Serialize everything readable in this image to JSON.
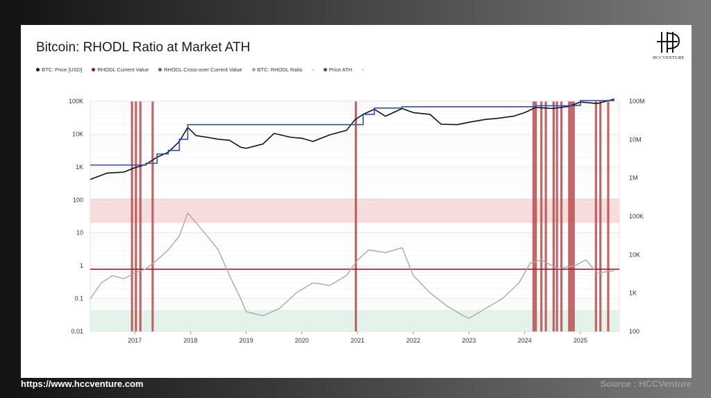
{
  "chart_data": {
    "type": "line",
    "title": "Bitcoin: RHODL Ratio at Market ATH",
    "legend": [
      {
        "label": "BTC: Price [USD]",
        "color": "#111111"
      },
      {
        "label": "RHODL Current Value",
        "color": "#8b1a1a"
      },
      {
        "label": "RHODL Cross-over Current Value",
        "color": "#a04848"
      },
      {
        "label": "BTC: RHODL Ratio",
        "color": "#a8a8a8"
      },
      {
        "label": "-",
        "color": ""
      },
      {
        "label": "Price ATH",
        "color": "#2f4bb5"
      },
      {
        "label": "-",
        "color": ""
      }
    ],
    "x_ticks": [
      "2017",
      "2018",
      "2019",
      "2020",
      "2021",
      "2022",
      "2023",
      "2024",
      "2025"
    ],
    "x_range": [
      2016.2,
      2025.7
    ],
    "y_left_ticks": [
      "0.01",
      "0.1",
      "1",
      "10",
      "100",
      "1K",
      "10K",
      "100K"
    ],
    "y_left_range": [
      0.01,
      100000
    ],
    "y_left_scale": "log",
    "y_right_ticks": [
      "100",
      "1K",
      "10K",
      "100K",
      "1M",
      "10M",
      "100M"
    ],
    "y_right_range": [
      100,
      100000000
    ],
    "y_right_scale": "log",
    "rhodl_current_value": 0.78,
    "bands": [
      {
        "name": "upper",
        "from": 20,
        "to": 110,
        "color": "#f7d4d4"
      },
      {
        "name": "lower",
        "from": 0.01,
        "to": 0.045,
        "color": "#dff1e6"
      }
    ],
    "price_series": {
      "name": "BTC: Price [USD]",
      "x": [
        2016.2,
        2016.5,
        2016.8,
        2017.0,
        2017.2,
        2017.4,
        2017.6,
        2017.8,
        2017.95,
        2018.1,
        2018.3,
        2018.5,
        2018.7,
        2018.9,
        2019.0,
        2019.3,
        2019.5,
        2019.8,
        2020.0,
        2020.2,
        2020.5,
        2020.8,
        2020.95,
        2021.1,
        2021.3,
        2021.5,
        2021.8,
        2022.0,
        2022.3,
        2022.5,
        2022.8,
        2023.0,
        2023.3,
        2023.5,
        2023.8,
        2024.0,
        2024.2,
        2024.5,
        2024.8,
        2025.0,
        2025.3,
        2025.6
      ],
      "values": [
        420,
        650,
        700,
        950,
        1200,
        2000,
        2800,
        6000,
        16000,
        9000,
        8000,
        7000,
        6500,
        4000,
        3700,
        5000,
        10500,
        8000,
        7500,
        6000,
        9500,
        13000,
        27000,
        40000,
        57000,
        35000,
        60000,
        45000,
        40000,
        20000,
        19500,
        23000,
        28000,
        30000,
        35000,
        45000,
        65000,
        60000,
        70000,
        95000,
        85000,
        115000
      ]
    },
    "ath_series": {
      "name": "Price ATH",
      "x": [
        2016.2,
        2017.0,
        2017.2,
        2017.4,
        2017.6,
        2017.8,
        2017.95,
        2020.95,
        2021.1,
        2021.3,
        2021.8,
        2024.2,
        2024.9,
        2025.0,
        2025.6
      ],
      "values": [
        1150,
        1150,
        1300,
        2500,
        3200,
        7000,
        19500,
        19500,
        40000,
        62000,
        68000,
        73000,
        75000,
        105000,
        123000
      ]
    },
    "rhodl_series": {
      "name": "BTC: RHODL Ratio",
      "x": [
        2016.2,
        2016.4,
        2016.6,
        2016.8,
        2017.0,
        2017.2,
        2017.4,
        2017.6,
        2017.8,
        2017.95,
        2018.1,
        2018.3,
        2018.5,
        2018.7,
        2018.9,
        2019.0,
        2019.3,
        2019.6,
        2019.9,
        2020.2,
        2020.5,
        2020.8,
        2021.0,
        2021.2,
        2021.5,
        2021.8,
        2022.0,
        2022.3,
        2022.6,
        2022.9,
        2023.0,
        2023.3,
        2023.6,
        2023.9,
        2024.1,
        2024.3,
        2024.6,
        2024.9,
        2025.1,
        2025.3,
        2025.6
      ],
      "values": [
        0.1,
        0.3,
        0.5,
        0.4,
        0.6,
        0.8,
        1.5,
        3.0,
        8.0,
        40,
        20,
        8.0,
        3.0,
        0.5,
        0.1,
        0.04,
        0.03,
        0.05,
        0.15,
        0.3,
        0.25,
        0.5,
        1.5,
        3.0,
        2.5,
        3.5,
        0.5,
        0.15,
        0.06,
        0.03,
        0.025,
        0.05,
        0.1,
        0.3,
        1.2,
        1.5,
        0.8,
        1.0,
        1.5,
        0.6,
        0.7
      ]
    },
    "crossovers": [
      2016.95,
      2017.02,
      2017.1,
      2017.32,
      2020.97,
      2024.16,
      2024.2,
      2024.3,
      2024.38,
      2024.52,
      2024.58,
      2024.66,
      2024.8,
      2024.84,
      2024.88,
      2025.28,
      2025.36,
      2025.5
    ]
  },
  "footer": {
    "url": "https://www.hccventure.com",
    "source": "Source : HCCVenture"
  },
  "logo": {
    "text": "HCCVENTURE"
  }
}
